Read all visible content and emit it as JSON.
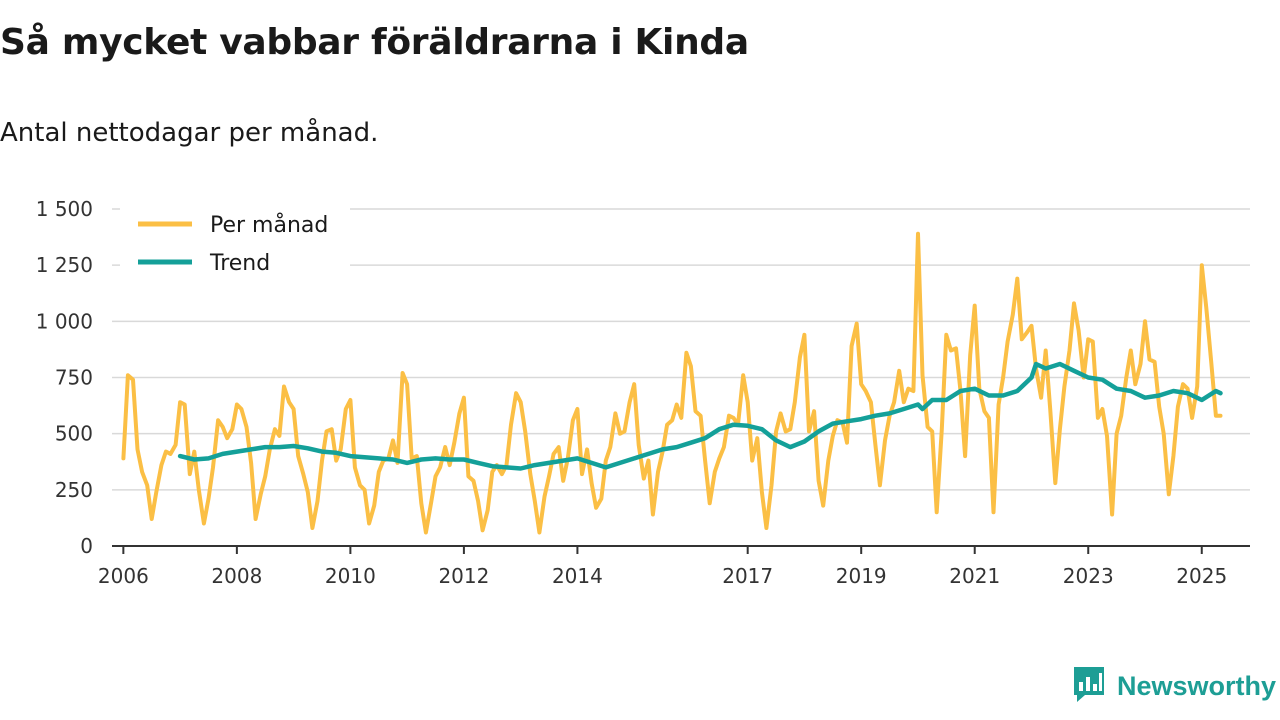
{
  "title": "Så mycket vabbar föräldrarna i Kinda",
  "subtitle": "Antal nettodagar per månad.",
  "brand": {
    "name": "Newsworthy",
    "icon": "newsworthy-logo-icon"
  },
  "colors": {
    "monthly": "#fbbf45",
    "trend": "#14a099",
    "grid": "#d9d9d9",
    "axis": "#333333"
  },
  "chart_data": {
    "type": "line",
    "title": "Så mycket vabbar föräldrarna i Kinda",
    "subtitle": "Antal nettodagar per månad.",
    "xlabel": "",
    "ylabel": "",
    "xlim": [
      2005.8,
      2025.85
    ],
    "ylim": [
      0,
      1500
    ],
    "yticks": [
      0,
      250,
      500,
      750,
      1000,
      1250,
      1500
    ],
    "ytick_labels": [
      "0",
      "250",
      "500",
      "750",
      "1 000",
      "1 250",
      "1 500"
    ],
    "xticks": [
      2006,
      2008,
      2010,
      2012,
      2014,
      2017,
      2019,
      2021,
      2023,
      2025
    ],
    "xtick_labels": [
      "2006",
      "2008",
      "2010",
      "2012",
      "2014",
      "2017",
      "2019",
      "2021",
      "2023",
      "2025"
    ],
    "grid": true,
    "legend": {
      "position": "top-left",
      "entries": [
        "Per månad",
        "Trend"
      ]
    },
    "series": [
      {
        "name": "Per månad",
        "x": [
          2006.0,
          2006.08,
          2006.17,
          2006.25,
          2006.33,
          2006.42,
          2006.5,
          2006.58,
          2006.67,
          2006.75,
          2006.83,
          2006.92,
          2007.0,
          2007.08,
          2007.17,
          2007.25,
          2007.33,
          2007.42,
          2007.5,
          2007.58,
          2007.67,
          2007.75,
          2007.83,
          2007.92,
          2008.0,
          2008.08,
          2008.17,
          2008.25,
          2008.33,
          2008.42,
          2008.5,
          2008.58,
          2008.67,
          2008.75,
          2008.83,
          2008.92,
          2009.0,
          2009.08,
          2009.17,
          2009.25,
          2009.33,
          2009.42,
          2009.5,
          2009.58,
          2009.67,
          2009.75,
          2009.83,
          2009.92,
          2010.0,
          2010.08,
          2010.17,
          2010.25,
          2010.33,
          2010.42,
          2010.5,
          2010.58,
          2010.67,
          2010.75,
          2010.83,
          2010.92,
          2011.0,
          2011.08,
          2011.17,
          2011.25,
          2011.33,
          2011.42,
          2011.5,
          2011.58,
          2011.67,
          2011.75,
          2011.83,
          2011.92,
          2012.0,
          2012.08,
          2012.17,
          2012.25,
          2012.33,
          2012.42,
          2012.5,
          2012.58,
          2012.67,
          2012.75,
          2012.83,
          2012.92,
          2013.0,
          2013.08,
          2013.17,
          2013.25,
          2013.33,
          2013.42,
          2013.5,
          2013.58,
          2013.67,
          2013.75,
          2013.83,
          2013.92,
          2014.0,
          2014.08,
          2014.17,
          2014.25,
          2014.33,
          2014.42,
          2014.5,
          2014.58,
          2014.67,
          2014.75,
          2014.83,
          2014.92,
          2015.0,
          2015.08,
          2015.17,
          2015.25,
          2015.33,
          2015.42,
          2015.5,
          2015.58,
          2015.67,
          2015.75,
          2015.83,
          2015.92,
          2016.0,
          2016.08,
          2016.17,
          2016.25,
          2016.33,
          2016.42,
          2016.5,
          2016.58,
          2016.67,
          2016.75,
          2016.83,
          2016.92,
          2017.0,
          2017.08,
          2017.17,
          2017.25,
          2017.33,
          2017.42,
          2017.5,
          2017.58,
          2017.67,
          2017.75,
          2017.83,
          2017.92,
          2018.0,
          2018.08,
          2018.17,
          2018.25,
          2018.33,
          2018.42,
          2018.5,
          2018.58,
          2018.67,
          2018.75,
          2018.83,
          2018.92,
          2019.0,
          2019.08,
          2019.17,
          2019.25,
          2019.33,
          2019.42,
          2019.5,
          2019.58,
          2019.67,
          2019.75,
          2019.83,
          2019.92,
          2020.0,
          2020.08,
          2020.17,
          2020.25,
          2020.33,
          2020.42,
          2020.5,
          2020.58,
          2020.67,
          2020.75,
          2020.83,
          2020.92,
          2021.0,
          2021.08,
          2021.17,
          2021.25,
          2021.33,
          2021.42,
          2021.5,
          2021.58,
          2021.67,
          2021.75,
          2021.83,
          2021.92,
          2022.0,
          2022.08,
          2022.17,
          2022.25,
          2022.33,
          2022.42,
          2022.5,
          2022.58,
          2022.67,
          2022.75,
          2022.83,
          2022.92,
          2023.0,
          2023.08,
          2023.17,
          2023.25,
          2023.33,
          2023.42,
          2023.5,
          2023.58,
          2023.67,
          2023.75,
          2023.83,
          2023.92,
          2024.0,
          2024.08,
          2024.17,
          2024.25,
          2024.33,
          2024.42,
          2024.5,
          2024.58,
          2024.67,
          2024.75,
          2024.83,
          2024.92,
          2025.0,
          2025.08,
          2025.17,
          2025.25,
          2025.33
        ],
        "values": [
          390,
          760,
          740,
          430,
          330,
          270,
          120,
          240,
          360,
          420,
          410,
          450,
          640,
          630,
          320,
          420,
          250,
          100,
          210,
          350,
          560,
          530,
          480,
          520,
          630,
          610,
          530,
          370,
          120,
          230,
          310,
          430,
          520,
          490,
          710,
          640,
          610,
          400,
          320,
          240,
          80,
          200,
          380,
          510,
          520,
          380,
          430,
          610,
          650,
          350,
          270,
          250,
          100,
          180,
          330,
          380,
          390,
          470,
          370,
          770,
          720,
          390,
          400,
          190,
          60,
          190,
          310,
          350,
          440,
          360,
          460,
          590,
          660,
          310,
          290,
          200,
          70,
          160,
          330,
          360,
          320,
          360,
          540,
          680,
          640,
          510,
          320,
          200,
          60,
          220,
          310,
          410,
          440,
          290,
          390,
          560,
          610,
          320,
          430,
          280,
          170,
          210,
          380,
          440,
          590,
          500,
          510,
          640,
          720,
          450,
          300,
          380,
          140,
          330,
          420,
          540,
          560,
          630,
          570,
          860,
          800,
          600,
          580,
          380,
          190,
          330,
          390,
          440,
          580,
          570,
          540,
          760,
          640,
          380,
          480,
          240,
          80,
          270,
          510,
          590,
          510,
          520,
          640,
          840,
          940,
          510,
          600,
          290,
          180,
          380,
          490,
          560,
          550,
          460,
          890,
          990,
          720,
          690,
          640,
          450,
          270,
          470,
          580,
          640,
          780,
          640,
          700,
          690,
          1390,
          760,
          530,
          510,
          150,
          520,
          940,
          870,
          880,
          690,
          400,
          850,
          1070,
          700,
          600,
          570,
          150,
          630,
          750,
          910,
          1030,
          1190,
          920,
          950,
          980,
          790,
          660,
          870,
          610,
          280,
          520,
          710,
          870,
          1080,
          960,
          750,
          920,
          910,
          570,
          610,
          490,
          140,
          500,
          580,
          750,
          870,
          720,
          810,
          1000,
          830,
          820,
          620,
          500,
          230,
          400,
          620,
          720,
          700,
          570,
          710,
          1250,
          1060,
          810,
          580,
          580
        ]
      },
      {
        "name": "Trend",
        "x": [
          2007.0,
          2007.25,
          2007.5,
          2007.75,
          2008.0,
          2008.25,
          2008.5,
          2008.75,
          2009.0,
          2009.25,
          2009.5,
          2009.75,
          2010.0,
          2010.25,
          2010.5,
          2010.75,
          2011.0,
          2011.25,
          2011.5,
          2011.75,
          2012.0,
          2012.25,
          2012.5,
          2012.75,
          2013.0,
          2013.25,
          2013.5,
          2013.75,
          2014.0,
          2014.25,
          2014.5,
          2014.75,
          2015.0,
          2015.25,
          2015.5,
          2015.75,
          2016.0,
          2016.25,
          2016.5,
          2016.75,
          2017.0,
          2017.25,
          2017.5,
          2017.75,
          2018.0,
          2018.25,
          2018.5,
          2018.75,
          2019.0,
          2019.25,
          2019.5,
          2019.75,
          2020.0,
          2020.08,
          2020.25,
          2020.5,
          2020.75,
          2021.0,
          2021.25,
          2021.5,
          2021.75,
          2022.0,
          2022.08,
          2022.25,
          2022.5,
          2022.75,
          2023.0,
          2023.25,
          2023.5,
          2023.75,
          2024.0,
          2024.25,
          2024.5,
          2024.75,
          2025.0,
          2025.25,
          2025.33
        ],
        "values": [
          400,
          385,
          390,
          410,
          420,
          430,
          440,
          440,
          445,
          435,
          420,
          415,
          400,
          395,
          390,
          385,
          370,
          385,
          390,
          385,
          385,
          370,
          355,
          350,
          345,
          360,
          370,
          380,
          390,
          370,
          350,
          370,
          390,
          410,
          430,
          440,
          460,
          480,
          520,
          540,
          535,
          520,
          470,
          440,
          465,
          510,
          545,
          555,
          565,
          580,
          590,
          610,
          630,
          610,
          650,
          650,
          690,
          700,
          670,
          670,
          690,
          750,
          810,
          790,
          810,
          780,
          750,
          740,
          700,
          690,
          660,
          670,
          690,
          680,
          650,
          690,
          680
        ]
      }
    ]
  }
}
